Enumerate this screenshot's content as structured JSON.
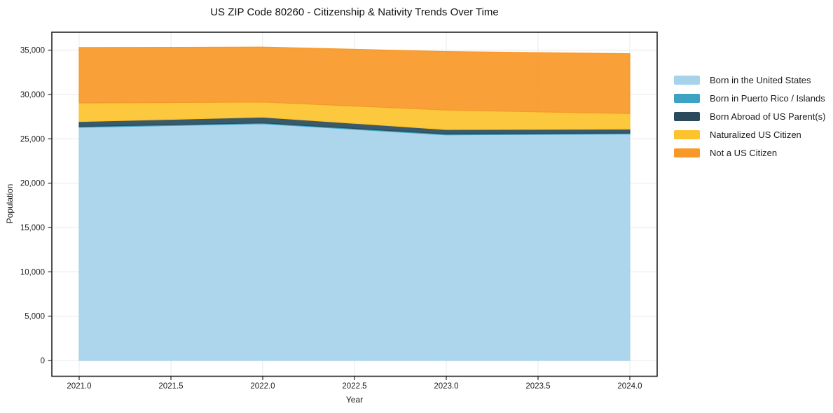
{
  "title": "US ZIP Code 80260 - Citizenship & Nativity Trends Over Time",
  "chart_data": {
    "type": "area",
    "stacked": true,
    "title": "US ZIP Code 80260 - Citizenship & Nativity Trends Over Time",
    "xlabel": "Year",
    "ylabel": "Population",
    "x": [
      2021,
      2022,
      2023,
      2024
    ],
    "series": [
      {
        "name": "Born in the United States",
        "color": "#A6D3EA",
        "values": [
          26300,
          26700,
          25450,
          25550
        ]
      },
      {
        "name": "Born in Puerto Rico / Islands",
        "color": "#3DA2C4",
        "values": [
          100,
          100,
          100,
          100
        ]
      },
      {
        "name": "Born Abroad of US Parent(s)",
        "color": "#294B5C",
        "values": [
          550,
          650,
          500,
          450
        ]
      },
      {
        "name": "Naturalized US Citizen",
        "color": "#FCC32D",
        "values": [
          2100,
          1700,
          2200,
          1750
        ]
      },
      {
        "name": "Not a US Citizen",
        "color": "#F89828",
        "values": [
          6250,
          6200,
          6600,
          6750
        ]
      }
    ],
    "x_ticks": [
      {
        "value": 2021.0,
        "label": "2021.0"
      },
      {
        "value": 2021.5,
        "label": "2021.5"
      },
      {
        "value": 2022.0,
        "label": "2022.0"
      },
      {
        "value": 2022.5,
        "label": "2022.5"
      },
      {
        "value": 2023.0,
        "label": "2023.0"
      },
      {
        "value": 2023.5,
        "label": "2023.5"
      },
      {
        "value": 2024.0,
        "label": "2024.0"
      }
    ],
    "y_ticks": [
      {
        "value": 0,
        "label": "0"
      },
      {
        "value": 5000,
        "label": "5,000"
      },
      {
        "value": 10000,
        "label": "10,000"
      },
      {
        "value": 15000,
        "label": "15,000"
      },
      {
        "value": 20000,
        "label": "20,000"
      },
      {
        "value": 25000,
        "label": "25,000"
      },
      {
        "value": 30000,
        "label": "30,000"
      },
      {
        "value": 35000,
        "label": "35,000"
      }
    ],
    "xlim": [
      2020.85,
      2024.15
    ],
    "ylim": [
      -1750,
      37050
    ],
    "grid": true,
    "legend_position": "right",
    "grid_color": "#E8E8E8",
    "axis_color": "#262626",
    "tick_label_color": "#1a1a1a"
  }
}
